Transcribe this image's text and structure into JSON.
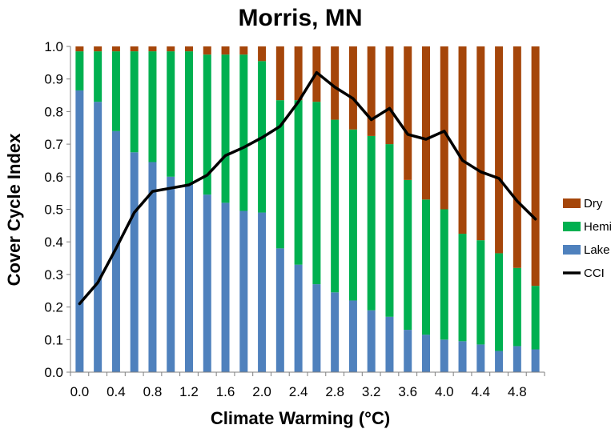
{
  "chart_data": {
    "type": "bar",
    "stacked": true,
    "title": "Morris, MN",
    "xlabel": "Climate Warming (°C)",
    "ylabel": "Cover Cycle Index",
    "ylim": [
      0,
      1.0
    ],
    "y_ticks": [
      "0.0",
      "0.1",
      "0.2",
      "0.3",
      "0.4",
      "0.5",
      "0.6",
      "0.7",
      "0.8",
      "0.9",
      "1.0"
    ],
    "x": [
      0.0,
      0.2,
      0.4,
      0.6,
      0.8,
      1.0,
      1.2,
      1.4,
      1.6,
      1.8,
      2.0,
      2.2,
      2.4,
      2.6,
      2.8,
      3.0,
      3.2,
      3.4,
      3.6,
      3.8,
      4.0,
      4.2,
      4.4,
      4.6,
      4.8,
      5.0
    ],
    "x_tick_labels": [
      "0.0",
      "",
      "0.4",
      "",
      "0.8",
      "",
      "1.2",
      "",
      "1.6",
      "",
      "2.0",
      "",
      "2.4",
      "",
      "2.8",
      "",
      "3.2",
      "",
      "3.6",
      "",
      "4.0",
      "",
      "4.4",
      "",
      "4.8",
      ""
    ],
    "grid": false,
    "legend_position": "right",
    "series": [
      {
        "name": "Lake",
        "color": "#4f81bd",
        "values": [
          0.865,
          0.83,
          0.74,
          0.675,
          0.645,
          0.6,
          0.575,
          0.545,
          0.52,
          0.495,
          0.49,
          0.38,
          0.33,
          0.27,
          0.245,
          0.22,
          0.19,
          0.17,
          0.13,
          0.115,
          0.1,
          0.095,
          0.085,
          0.065,
          0.08,
          0.07
        ]
      },
      {
        "name": "Hemi",
        "color": "#00b050",
        "values": [
          0.12,
          0.155,
          0.245,
          0.31,
          0.34,
          0.385,
          0.41,
          0.43,
          0.455,
          0.48,
          0.465,
          0.455,
          0.505,
          0.56,
          0.53,
          0.525,
          0.535,
          0.53,
          0.46,
          0.415,
          0.4,
          0.33,
          0.32,
          0.3,
          0.24,
          0.195
        ]
      },
      {
        "name": "Dry",
        "color": "#a5460a",
        "values": [
          0.015,
          0.015,
          0.015,
          0.015,
          0.015,
          0.015,
          0.015,
          0.025,
          0.025,
          0.025,
          0.045,
          0.165,
          0.165,
          0.17,
          0.225,
          0.255,
          0.275,
          0.3,
          0.41,
          0.47,
          0.5,
          0.575,
          0.595,
          0.635,
          0.68,
          0.735
        ]
      },
      {
        "name": "CCI",
        "type": "line",
        "color": "#000000",
        "values": [
          0.21,
          0.275,
          0.38,
          0.49,
          0.555,
          0.565,
          0.575,
          0.605,
          0.665,
          0.69,
          0.72,
          0.755,
          0.83,
          0.92,
          0.875,
          0.84,
          0.775,
          0.81,
          0.73,
          0.715,
          0.74,
          0.65,
          0.615,
          0.595,
          0.525,
          0.47
        ]
      }
    ]
  }
}
